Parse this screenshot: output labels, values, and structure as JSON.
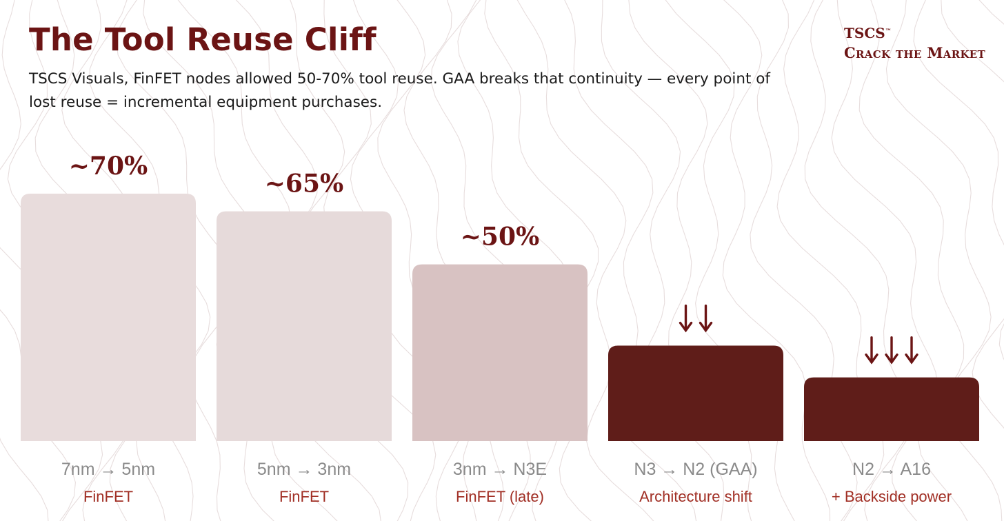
{
  "title": "The Tool Reuse Cliff",
  "subtitle": "TSCS Visuals, FinFET nodes allowed 50-70% tool reuse. GAA breaks that continuity — every point of lost reuse = incremental equipment purchases.",
  "brand": {
    "name": "TSCS",
    "trademark": "™",
    "tagline": "Crack the Market"
  },
  "colors": {
    "title": "#6b1414",
    "bar_light_1": "#e8dcdc",
    "bar_light_2": "#e6dada",
    "bar_light_3": "#d8c2c2",
    "bar_dark": "#5c1814",
    "label_node": "#8a8a8a",
    "label_arch": "#a12f25",
    "contour": "#c9b4b4"
  },
  "chart_data": {
    "type": "bar",
    "categories": [
      "7nm → 5nm",
      "5nm → 3nm",
      "3nm → N3E",
      "N3 → N2 (GAA)",
      "N2 → A16"
    ],
    "subcategories": [
      "FinFET",
      "FinFET",
      "FinFET (late)",
      "Architecture shift",
      "+ Backside power"
    ],
    "values": [
      70,
      65,
      50,
      27,
      18
    ],
    "data_labels": [
      "~70%",
      "~65%",
      "~50%",
      "",
      ""
    ],
    "arrow_counts": [
      0,
      0,
      0,
      2,
      3
    ],
    "ylim": [
      0,
      80
    ],
    "grid": false,
    "legend": false
  }
}
